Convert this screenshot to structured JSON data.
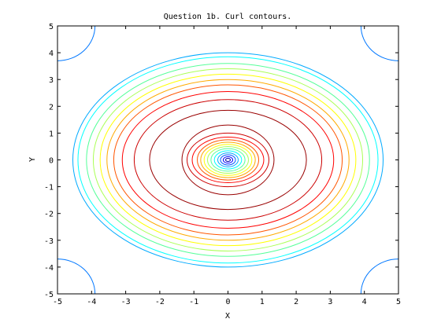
{
  "chart_data": {
    "type": "contour",
    "title": "Question 1b. Curl contours.",
    "xlabel": "X",
    "ylabel": "Y",
    "xlim": [
      -5,
      5
    ],
    "ylim": [
      -5,
      5
    ],
    "x_ticks": [
      -5,
      -4,
      -3,
      -2,
      -1,
      0,
      1,
      2,
      3,
      4,
      5
    ],
    "y_ticks": [
      -5,
      -4,
      -3,
      -2,
      -1,
      0,
      1,
      2,
      3,
      4,
      5
    ],
    "grid": false,
    "legend": "none",
    "outer_contours": [
      {
        "x_radius": 4.55,
        "y_radius": 4.0,
        "color": "#00aaff"
      },
      {
        "x_radius": 4.4,
        "y_radius": 3.85,
        "color": "#00ffff"
      },
      {
        "x_radius": 4.15,
        "y_radius": 3.6,
        "color": "#55ff99"
      },
      {
        "x_radius": 3.95,
        "y_radius": 3.4,
        "color": "#aaff55"
      },
      {
        "x_radius": 3.75,
        "y_radius": 3.2,
        "color": "#ffff00"
      },
      {
        "x_radius": 3.55,
        "y_radius": 3.0,
        "color": "#ffaa00"
      },
      {
        "x_radius": 3.35,
        "y_radius": 2.8,
        "color": "#ff5500"
      },
      {
        "x_radius": 3.1,
        "y_radius": 2.55,
        "color": "#ff0000"
      },
      {
        "x_radius": 2.75,
        "y_radius": 2.25,
        "color": "#cc0000"
      },
      {
        "x_radius": 2.3,
        "y_radius": 1.85,
        "color": "#990000"
      }
    ],
    "corner_contours": {
      "color": "#0077ff"
    },
    "inner_contours": [
      {
        "x_radius": 1.35,
        "y_radius": 1.3,
        "color": "#990000"
      },
      {
        "x_radius": 1.2,
        "y_radius": 1.0,
        "color": "#cc0000"
      },
      {
        "x_radius": 1.05,
        "y_radius": 0.85,
        "color": "#ff0000"
      },
      {
        "x_radius": 0.9,
        "y_radius": 0.75,
        "color": "#ff5500"
      },
      {
        "x_radius": 0.8,
        "y_radius": 0.66,
        "color": "#ffaa00"
      },
      {
        "x_radius": 0.7,
        "y_radius": 0.58,
        "color": "#ffff00"
      },
      {
        "x_radius": 0.6,
        "y_radius": 0.5,
        "color": "#aaff55"
      },
      {
        "x_radius": 0.5,
        "y_radius": 0.42,
        "color": "#55ff99"
      },
      {
        "x_radius": 0.4,
        "y_radius": 0.34,
        "color": "#00ffff"
      },
      {
        "x_radius": 0.3,
        "y_radius": 0.26,
        "color": "#00aaff"
      },
      {
        "x_radius": 0.22,
        "y_radius": 0.19,
        "color": "#0055ff"
      },
      {
        "x_radius": 0.14,
        "y_radius": 0.12,
        "color": "#0000ff"
      },
      {
        "x_radius": 0.07,
        "y_radius": 0.06,
        "color": "#0000aa"
      }
    ]
  }
}
